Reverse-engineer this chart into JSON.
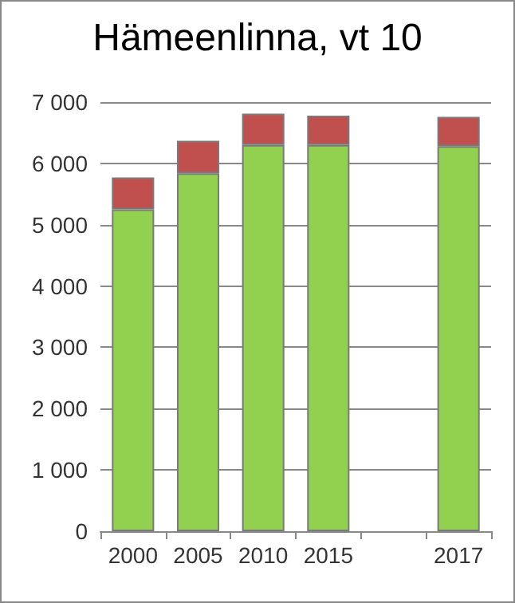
{
  "chart_data": {
    "type": "bar",
    "title": "Hämeenlinna, vt 10",
    "categories": [
      "2000",
      "2005",
      "2010",
      "2015",
      null,
      "2017"
    ],
    "stacked": true,
    "series": [
      {
        "color": "#92d050",
        "values": [
          5250,
          5840,
          6300,
          6300,
          null,
          6280
        ]
      },
      {
        "color": "#c0504d",
        "values": [
          520,
          530,
          510,
          480,
          null,
          480
        ]
      }
    ],
    "ylim": [
      0,
      7000
    ],
    "yticks": [
      {
        "value": 0,
        "label": "0"
      },
      {
        "value": 1000,
        "label": "1 000"
      },
      {
        "value": 2000,
        "label": "2 000"
      },
      {
        "value": 3000,
        "label": "3 000"
      },
      {
        "value": 4000,
        "label": "4 000"
      },
      {
        "value": 5000,
        "label": "5 000"
      },
      {
        "value": 6000,
        "label": "6 000"
      },
      {
        "value": 7000,
        "label": "7 000"
      }
    ],
    "grid": "y"
  }
}
